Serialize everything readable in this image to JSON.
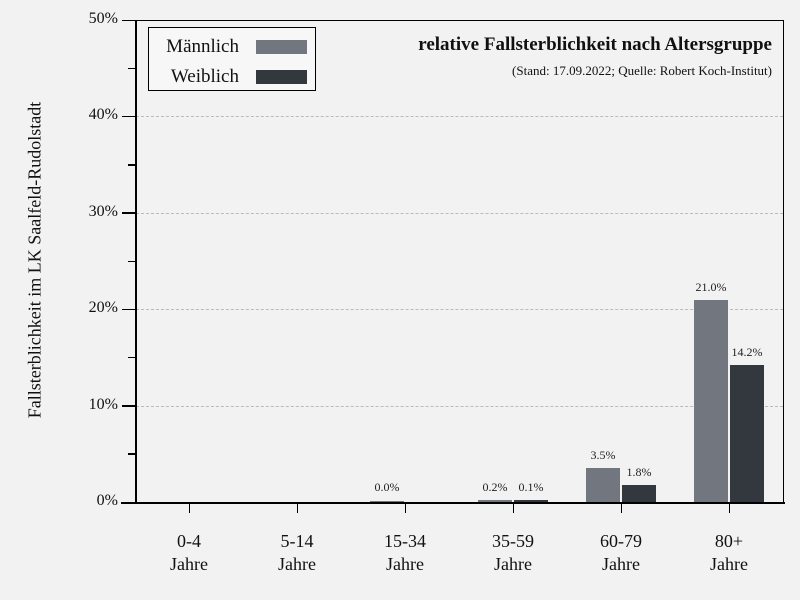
{
  "chart_data": {
    "type": "bar",
    "title": "relative Fallsterblichkeit nach Altersgruppe",
    "subtitle": "(Stand: 17.09.2022; Quelle: Robert Koch-Institut)",
    "xlabel": "",
    "ylabel": "Fallsterblichkeit im LK Saalfeld-Rudolstadt",
    "ylim": [
      0,
      50
    ],
    "yticks": [
      "0%",
      "10%",
      "20%",
      "30%",
      "40%",
      "50%"
    ],
    "grid": "horizontal dashed",
    "legend_position": "top-left",
    "categories": [
      {
        "line1": "0-4",
        "line2": "Jahre"
      },
      {
        "line1": "5-14",
        "line2": "Jahre"
      },
      {
        "line1": "15-34",
        "line2": "Jahre"
      },
      {
        "line1": "35-59",
        "line2": "Jahre"
      },
      {
        "line1": "60-79",
        "line2": "Jahre"
      },
      {
        "line1": "80+",
        "line2": "Jahre"
      }
    ],
    "series": [
      {
        "name": "Männlich",
        "color": "#72767e",
        "values": [
          null,
          null,
          0.0,
          0.2,
          3.5,
          21.0
        ],
        "labels": [
          "",
          "",
          "0.0%",
          "0.2%",
          "3.5%",
          "21.0%"
        ]
      },
      {
        "name": "Weiblich",
        "color": "#33373e",
        "values": [
          null,
          null,
          null,
          0.1,
          1.8,
          14.2
        ],
        "labels": [
          "",
          "",
          "",
          "0.1%",
          "1.8%",
          "14.2%"
        ]
      }
    ]
  },
  "legend": {
    "items": [
      {
        "label": "Männlich",
        "color": "#72767e"
      },
      {
        "label": "Weiblich",
        "color": "#33373e"
      }
    ]
  },
  "colors": {
    "background": "#f2f2f2",
    "male": "#72767e",
    "female": "#33373e",
    "grid": "#bbbbbb"
  }
}
